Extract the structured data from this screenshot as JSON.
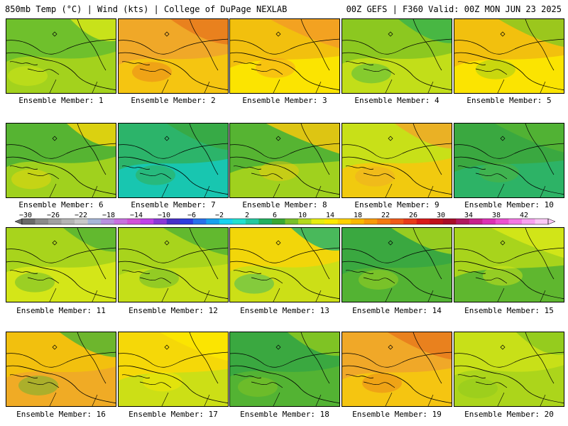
{
  "header": {
    "title_left": "850mb Temp (°C) | Wind (kts) | College of DuPage NEXLAB",
    "title_right": "00Z GEFS | F360 Valid: 00Z MON JUN 23 2025"
  },
  "members": [
    {
      "label": "Ensemble Member: 1",
      "fill": [
        "#6fc02c",
        "#a8d41c",
        "#d8e818"
      ]
    },
    {
      "label": "Ensemble Member: 2",
      "fill": [
        "#f0a828",
        "#f5c80e",
        "#e87a1c"
      ]
    },
    {
      "label": "Ensemble Member: 3",
      "fill": [
        "#f2c00e",
        "#fce800",
        "#f39c24"
      ]
    },
    {
      "label": "Ensemble Member: 4",
      "fill": [
        "#8cc820",
        "#c8e018",
        "#3cb44a"
      ]
    },
    {
      "label": "Ensemble Member: 5",
      "fill": [
        "#f2c00e",
        "#fce800",
        "#8cc820"
      ]
    },
    {
      "label": "Ensemble Member: 6",
      "fill": [
        "#56b432",
        "#a8d41c",
        "#f2d60a"
      ]
    },
    {
      "label": "Ensemble Member: 7",
      "fill": [
        "#2cb46a",
        "#16c8b8",
        "#3aa840"
      ]
    },
    {
      "label": "Ensemble Member: 8",
      "fill": [
        "#56b432",
        "#a8d41c",
        "#f5c80e"
      ]
    },
    {
      "label": "Ensemble Member: 9",
      "fill": [
        "#c8e018",
        "#f5c80e",
        "#f0a828"
      ]
    },
    {
      "label": "Ensemble Member: 10",
      "fill": [
        "#3aa840",
        "#2cb46a",
        "#56b432"
      ]
    },
    {
      "label": "Ensemble Member: 11",
      "fill": [
        "#a8d41c",
        "#d8e818",
        "#56b432"
      ]
    },
    {
      "label": "Ensemble Member: 12",
      "fill": [
        "#a8d41c",
        "#c8e018",
        "#56b432"
      ]
    },
    {
      "label": "Ensemble Member: 13",
      "fill": [
        "#f2d60a",
        "#c8e018",
        "#2cb46a"
      ]
    },
    {
      "label": "Ensemble Member: 14",
      "fill": [
        "#3aa840",
        "#56b432",
        "#a8d41c"
      ]
    },
    {
      "label": "Ensemble Member: 15",
      "fill": [
        "#a8d41c",
        "#56b432",
        "#d8e818"
      ]
    },
    {
      "label": "Ensemble Member: 16",
      "fill": [
        "#f2c00e",
        "#f0a828",
        "#56b432"
      ]
    },
    {
      "label": "Ensemble Member: 17",
      "fill": [
        "#f5d808",
        "#c8e018",
        "#fce800"
      ]
    },
    {
      "label": "Ensemble Member: 18",
      "fill": [
        "#3aa840",
        "#56b432",
        "#8cc820"
      ]
    },
    {
      "label": "Ensemble Member: 19",
      "fill": [
        "#f0a828",
        "#f5c80e",
        "#e87a1c"
      ]
    },
    {
      "label": "Ensemble Member: 20",
      "fill": [
        "#c8e018",
        "#a8d41c",
        "#8cc820"
      ]
    }
  ],
  "colorbar": {
    "ticks": [
      "-30",
      "-26",
      "-22",
      "-18",
      "-14",
      "-10",
      "-6",
      "-2",
      "2",
      "6",
      "10",
      "14",
      "18",
      "22",
      "26",
      "30",
      "34",
      "38",
      "42"
    ],
    "colors": [
      "#6a6a6a",
      "#8a8a8a",
      "#a0a0a0",
      "#b4b4b4",
      "#c8c8c8",
      "#a6b6d8",
      "#b890e0",
      "#c870e0",
      "#d250d8",
      "#c040e8",
      "#8a38d8",
      "#4830c8",
      "#2c3ce0",
      "#2870ec",
      "#18a0f0",
      "#18d2f0",
      "#22e0d0",
      "#24c8a0",
      "#22b060",
      "#38a832",
      "#78c02a",
      "#b4d81c",
      "#e6ec10",
      "#fce800",
      "#fcd000",
      "#fab800",
      "#f89a0a",
      "#f47a12",
      "#f05a1a",
      "#e83a1a",
      "#d81a1a",
      "#c0101a",
      "#a80c28",
      "#b01860",
      "#c8208c",
      "#dc30b4",
      "#ec50d0",
      "#f478e4",
      "#f8a0f0",
      "#fac8f6"
    ]
  }
}
